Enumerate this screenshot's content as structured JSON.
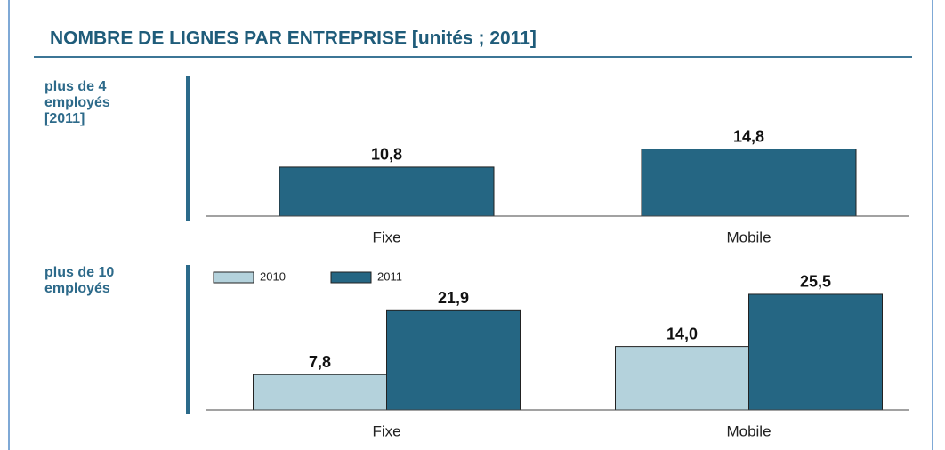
{
  "title": "NOMBRE DE LIGNES PAR ENTREPRISE [unités ; 2011]",
  "chart_data": [
    {
      "type": "bar",
      "label": [
        "plus de 4",
        "employés",
        "[2011]"
      ],
      "categories": [
        "Fixe",
        "Mobile"
      ],
      "values": [
        10.8,
        14.8
      ],
      "value_labels": [
        "10,8",
        "14,8"
      ],
      "color": "#256683",
      "ylim": [
        0,
        30
      ]
    },
    {
      "type": "grouped_bar",
      "label": [
        "plus de 10",
        "employés"
      ],
      "categories": [
        "Fixe",
        "Mobile"
      ],
      "series": [
        {
          "name": "2010",
          "color": "#b4d2dc",
          "values": [
            7.8,
            14.0
          ],
          "value_labels": [
            "7,8",
            "14,0"
          ]
        },
        {
          "name": "2011",
          "color": "#256683",
          "values": [
            21.9,
            25.5
          ],
          "value_labels": [
            "21,9",
            "25,5"
          ]
        }
      ],
      "legend": "top-left",
      "ylim": [
        0,
        30
      ]
    }
  ]
}
